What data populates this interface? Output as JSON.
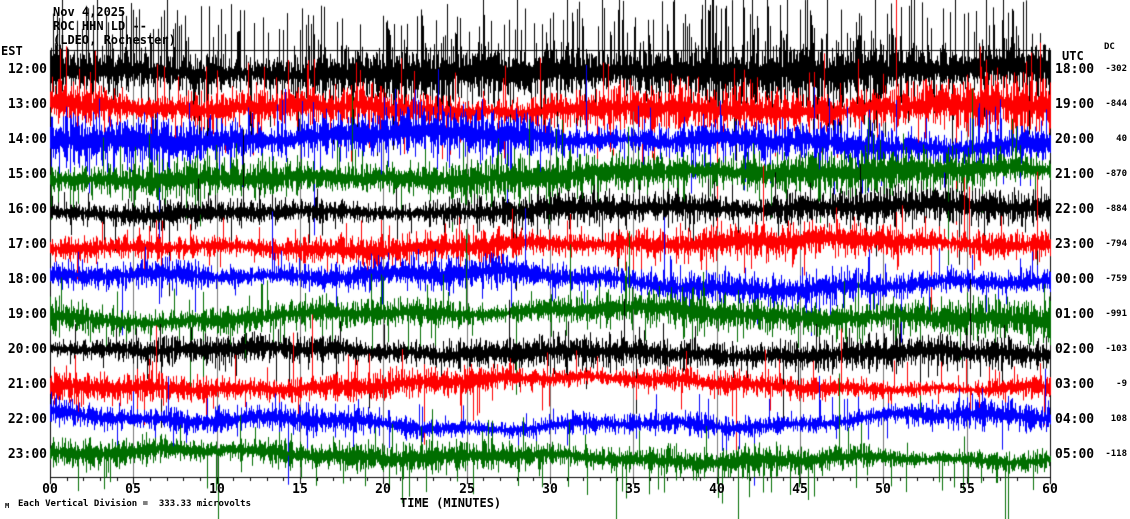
{
  "header": {
    "date": "Nov 4,2025",
    "station_code": "ROC HHN LD --",
    "station_name": "(LDEO, Rochester)"
  },
  "left_axis": {
    "label": "EST"
  },
  "right_axis": {
    "label": "UTC"
  },
  "dc_column": {
    "label": "DC"
  },
  "x_axis": {
    "label": "TIME (MINUTES)",
    "ticks": [
      "00",
      "05",
      "10",
      "15",
      "20",
      "25",
      "30",
      "35",
      "40",
      "45",
      "50",
      "55",
      "60"
    ]
  },
  "footer": {
    "scale_note": "Each Vertical Division =  333.33 microvolts",
    "mark": "M"
  },
  "chart_data": {
    "type": "seismogram",
    "title": "ROC HHN LD -- (LDEO, Rochester) Nov 4,2025",
    "xlabel": "TIME (MINUTES)",
    "x_range_minutes": [
      0,
      60
    ],
    "x_tick_step_minutes": 5,
    "minutes_per_line": 60,
    "vertical_division_microvolts": 333.33,
    "grid_color": "#777777",
    "border_color": "#000000",
    "background_color": "#ffffff",
    "colors_cycle": [
      "#000000",
      "#ff0000",
      "#0000ff",
      "#006e00"
    ],
    "rows": [
      {
        "est": "12:00",
        "utc": "18:00",
        "dc": -302,
        "color": "#000000",
        "amp": 19,
        "wander": 6,
        "spike": 56,
        "spike_prob": 0.3,
        "up_bias": 0.75
      },
      {
        "est": "13:00",
        "utc": "19:00",
        "dc": -844,
        "color": "#ff0000",
        "amp": 15,
        "wander": 9,
        "spike": 38,
        "spike_prob": 0.12,
        "up_bias": 0.55
      },
      {
        "est": "14:00",
        "utc": "20:00",
        "dc": 40,
        "color": "#0000ff",
        "amp": 15,
        "wander": 10,
        "spike": 34,
        "spike_prob": 0.1,
        "up_bias": 0.5
      },
      {
        "est": "15:00",
        "utc": "21:00",
        "dc": -870,
        "color": "#006e00",
        "amp": 13,
        "wander": 8,
        "spike": 32,
        "spike_prob": 0.08,
        "up_bias": 0.5
      },
      {
        "est": "16:00",
        "utc": "22:00",
        "dc": -884,
        "color": "#000000",
        "amp": 11,
        "wander": 6,
        "spike": 26,
        "spike_prob": 0.06,
        "up_bias": 0.5
      },
      {
        "est": "17:00",
        "utc": "23:00",
        "dc": -794,
        "color": "#ff0000",
        "amp": 10,
        "wander": 7,
        "spike": 24,
        "spike_prob": 0.06,
        "up_bias": 0.5
      },
      {
        "est": "18:00",
        "utc": "00:00",
        "dc": -759,
        "color": "#0000ff",
        "amp": 10,
        "wander": 13,
        "spike": 22,
        "spike_prob": 0.05,
        "up_bias": 0.5
      },
      {
        "est": "19:00",
        "utc": "01:00",
        "dc": -991,
        "color": "#006e00",
        "amp": 12,
        "wander": 9,
        "spike": 28,
        "spike_prob": 0.07,
        "up_bias": 0.5
      },
      {
        "est": "20:00",
        "utc": "02:00",
        "dc": -103,
        "color": "#000000",
        "amp": 10,
        "wander": 7,
        "spike": 22,
        "spike_prob": 0.05,
        "up_bias": 0.5
      },
      {
        "est": "21:00",
        "utc": "03:00",
        "dc": -9,
        "color": "#ff0000",
        "amp": 9,
        "wander": 9,
        "spike": 26,
        "spike_prob": 0.06,
        "up_bias": 0.5
      },
      {
        "est": "22:00",
        "utc": "04:00",
        "dc": 108,
        "color": "#0000ff",
        "amp": 9,
        "wander": 12,
        "spike": 22,
        "spike_prob": 0.05,
        "up_bias": 0.5
      },
      {
        "est": "23:00",
        "utc": "05:00",
        "dc": -118,
        "color": "#006e00",
        "amp": 9,
        "wander": 9,
        "spike": 30,
        "spike_prob": 0.08,
        "up_bias": 0.35
      }
    ]
  }
}
